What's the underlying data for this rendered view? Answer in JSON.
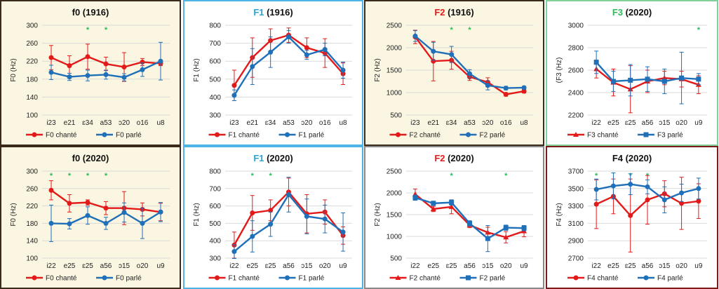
{
  "colors": {
    "chante": "#e21a1a",
    "parle": "#1f70b8",
    "star": "#2dbb5a",
    "grid": "#d9d9d9"
  },
  "legend_labels": {
    "chante_suffix": " chanté",
    "parle_suffix": " parlé"
  },
  "chart_data": [
    {
      "type": "line",
      "title_main": "f0",
      "title_rest": " (1916)",
      "title_color": "#111111",
      "bg": "#fbf6e1",
      "border": "#3a2a1a",
      "ylabel": "F0 (Hz)",
      "ylim": [
        100,
        300
      ],
      "yticks": [
        100,
        140,
        180,
        220,
        260,
        300
      ],
      "categories": [
        "i23",
        "e21",
        "ɛ34",
        "a53",
        "ɔ20",
        "o16",
        "u8"
      ],
      "marker": "circle",
      "stars": [
        2,
        3
      ],
      "series": [
        {
          "name": "F0 chanté",
          "values": [
            228,
            210,
            230,
            214,
            207,
            218,
            215
          ],
          "err": [
            27,
            22,
            28,
            15,
            32,
            8,
            5
          ]
        },
        {
          "name": "F0 parlé",
          "values": [
            195,
            185,
            188,
            190,
            184,
            201,
            220
          ],
          "err": [
            16,
            8,
            12,
            10,
            8,
            15,
            42
          ]
        }
      ]
    },
    {
      "type": "line",
      "title_main": "F1",
      "title_rest": " (1916)",
      "title_color": "#29a3dc",
      "bg": "#ffffff",
      "border": "#4fb3e6",
      "ylabel": "F1 (Hz)",
      "ylim": [
        300,
        800
      ],
      "yticks": [
        300,
        400,
        500,
        600,
        700,
        800
      ],
      "categories": [
        "i23",
        "e21",
        "ɛ34",
        "a53",
        "ɔ20",
        "o16",
        "u8"
      ],
      "marker": "circle",
      "stars": [],
      "series": [
        {
          "name": "F1 chanté",
          "values": [
            465,
            620,
            715,
            745,
            675,
            645,
            530
          ],
          "err": [
            85,
            110,
            65,
            40,
            55,
            80,
            60
          ]
        },
        {
          "name": "F1 parlé",
          "values": [
            410,
            570,
            650,
            735,
            635,
            665,
            550
          ],
          "err": [
            30,
            100,
            85,
            35,
            25,
            35,
            45
          ]
        }
      ]
    },
    {
      "type": "line",
      "title_main": "F2",
      "title_rest": " (1916)",
      "title_color": "#e21a1a",
      "bg": "#fbf6e1",
      "border": "#3a2a1a",
      "ylabel": "F2 (Hz)",
      "ylim": [
        500,
        2500
      ],
      "yticks": [
        500,
        1000,
        1500,
        2000,
        2500
      ],
      "categories": [
        "i23",
        "e21",
        "ɛ34",
        "a53",
        "ɔ20",
        "o16",
        "u8"
      ],
      "marker": "circle",
      "stars": [
        2,
        3
      ],
      "series": [
        {
          "name": "F2 chanté",
          "values": [
            2240,
            1700,
            1720,
            1350,
            1230,
            960,
            1030
          ],
          "err": [
            150,
            440,
            200,
            80,
            100,
            40,
            40
          ]
        },
        {
          "name": "F2 parlé",
          "values": [
            2260,
            1920,
            1850,
            1420,
            1160,
            1100,
            1110
          ],
          "err": [
            120,
            200,
            180,
            90,
            100,
            40,
            30
          ]
        }
      ]
    },
    {
      "type": "line",
      "title_main": "F3",
      "title_rest": " (2020)",
      "title_color": "#2dbb5a",
      "bg": "#ffffff",
      "border": "#7fd19a",
      "ylabel": "(F3 (Hz)",
      "ylim": [
        2200,
        3000
      ],
      "yticks": [
        2200,
        2400,
        2600,
        2800,
        3000
      ],
      "categories": [
        "i22",
        "e25",
        "ɛ25",
        "a56",
        "ɔ15",
        "o20",
        "u9"
      ],
      "marker": "triangle-square",
      "stars": [
        6
      ],
      "series": [
        {
          "name": "F3 chanté",
          "values": [
            2610,
            2490,
            2430,
            2500,
            2530,
            2520,
            2470
          ],
          "err": [
            80,
            120,
            210,
            100,
            60,
            70,
            80
          ]
        },
        {
          "name": "F3 parlé",
          "values": [
            2670,
            2500,
            2510,
            2520,
            2500,
            2530,
            2520
          ],
          "err": [
            100,
            90,
            140,
            110,
            110,
            230,
            50
          ]
        }
      ]
    },
    {
      "type": "line",
      "title_main": "f0",
      "title_rest": " (2020)",
      "title_color": "#111111",
      "bg": "#fbf6e1",
      "border": "#3a2a1a",
      "ylabel": "F0 (Hz)",
      "ylim": [
        100,
        300
      ],
      "yticks": [
        100,
        140,
        180,
        220,
        260,
        300
      ],
      "categories": [
        "i22",
        "e25",
        "ɛ25",
        "a56",
        "ɔ15",
        "o20",
        "u9"
      ],
      "marker": "circle",
      "stars": [
        0,
        1,
        2,
        3
      ],
      "series": [
        {
          "name": "F0 chanté",
          "values": [
            256,
            226,
            228,
            215,
            215,
            212,
            206
          ],
          "err": [
            22,
            20,
            6,
            15,
            38,
            15,
            20
          ]
        },
        {
          "name": "F0 parlé",
          "values": [
            180,
            179,
            198,
            180,
            205,
            180,
            206
          ],
          "err": [
            42,
            12,
            20,
            14,
            22,
            35,
            22
          ]
        }
      ]
    },
    {
      "type": "line",
      "title_main": "F1",
      "title_rest": " (2020)",
      "title_color": "#29a3dc",
      "bg": "#ffffff",
      "border": "#4fb3e6",
      "ylabel": "F1 (Hz)",
      "ylim": [
        300,
        800
      ],
      "yticks": [
        300,
        400,
        500,
        600,
        700,
        800
      ],
      "categories": [
        "i22",
        "e25",
        "ɛ25",
        "a56",
        "ɔ15",
        "o20",
        "u9"
      ],
      "marker": "circle",
      "stars": [
        1,
        2
      ],
      "series": [
        {
          "name": "F1 chanté",
          "values": [
            375,
            560,
            575,
            680,
            555,
            565,
            430
          ],
          "err": [
            75,
            100,
            60,
            80,
            110,
            70,
            50
          ]
        },
        {
          "name": "F1 parlé",
          "values": [
            338,
            425,
            495,
            665,
            540,
            525,
            450
          ],
          "err": [
            40,
            90,
            70,
            100,
            100,
            80,
            110
          ]
        }
      ]
    },
    {
      "type": "line",
      "title_main": "F2",
      "title_rest": " (2020)",
      "title_color": "#e21a1a",
      "bg": "#ffffff",
      "border": "#888888",
      "ylabel": "F2 (Hz)",
      "ylim": [
        500,
        2500
      ],
      "yticks": [
        500,
        1000,
        1500,
        2000,
        2500
      ],
      "categories": [
        "i22",
        "e25",
        "ɛ25",
        "a56",
        "ɔ15",
        "o20",
        "u9"
      ],
      "marker": "triangle-square",
      "stars": [
        2,
        5
      ],
      "series": [
        {
          "name": "F2 chanté",
          "values": [
            1970,
            1630,
            1680,
            1260,
            1090,
            980,
            1120
          ],
          "err": [
            120,
            60,
            160,
            60,
            120,
            130,
            130
          ]
        },
        {
          "name": "F2 parlé",
          "values": [
            1890,
            1760,
            1780,
            1300,
            950,
            1200,
            1190
          ],
          "err": [
            60,
            50,
            60,
            60,
            300,
            60,
            60
          ]
        }
      ]
    },
    {
      "type": "line",
      "title_main": "F4",
      "title_rest": " (2020)",
      "title_color": "#111111",
      "bg": "#ffffff",
      "border": "#7a1a1a",
      "ylabel": "F4 (Hz)",
      "ylim": [
        2700,
        3700
      ],
      "yticks": [
        2700,
        2900,
        3100,
        3300,
        3500,
        3700
      ],
      "categories": [
        "i22",
        "e25",
        "ɛ25",
        "a56",
        "ɔ15",
        "o20",
        "u9"
      ],
      "marker": "circle",
      "stars": [
        0,
        2,
        3
      ],
      "series": [
        {
          "name": "F4 chanté",
          "values": [
            3320,
            3410,
            3190,
            3370,
            3440,
            3330,
            3355
          ],
          "err": [
            280,
            200,
            420,
            280,
            150,
            300,
            200
          ]
        },
        {
          "name": "F4 parlé",
          "values": [
            3490,
            3530,
            3550,
            3520,
            3370,
            3450,
            3500
          ],
          "err": [
            120,
            150,
            120,
            80,
            150,
            100,
            120
          ]
        }
      ]
    }
  ]
}
